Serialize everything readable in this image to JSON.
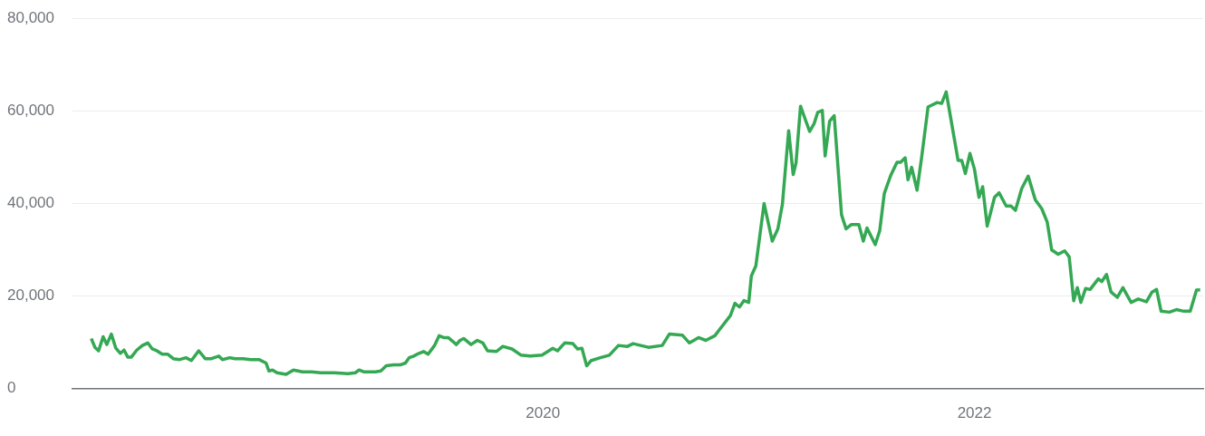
{
  "chart_data": {
    "type": "line",
    "grid": "y",
    "legend": false,
    "xlim": [
      2017.82,
      2023.06
    ],
    "xticks": [
      2020,
      2022
    ],
    "ylim": [
      0,
      80000
    ],
    "yticks": [
      {
        "value": 0,
        "label": "0"
      },
      {
        "value": 20000,
        "label": "20,000"
      },
      {
        "value": 40000,
        "label": "40,000"
      },
      {
        "value": 60000,
        "label": "60,000"
      },
      {
        "value": 80000,
        "label": "80,000"
      }
    ],
    "series": [
      {
        "color": "#34a853",
        "x": [
          2017.907,
          2017.924,
          2017.941,
          2017.962,
          2017.979,
          2018.0,
          2018.021,
          2018.042,
          2018.059,
          2018.076,
          2018.093,
          2018.118,
          2018.144,
          2018.169,
          2018.19,
          2018.211,
          2018.236,
          2018.262,
          2018.287,
          2018.317,
          2018.346,
          2018.371,
          2018.405,
          2018.435,
          2018.464,
          2018.498,
          2018.515,
          2018.549,
          2018.574,
          2018.612,
          2018.646,
          2018.684,
          2018.717,
          2018.73,
          2018.747,
          2018.768,
          2018.81,
          2018.844,
          2018.886,
          2018.928,
          2018.971,
          2019.034,
          2019.097,
          2019.131,
          2019.148,
          2019.169,
          2019.224,
          2019.249,
          2019.274,
          2019.308,
          2019.338,
          2019.363,
          2019.38,
          2019.401,
          2019.426,
          2019.447,
          2019.468,
          2019.498,
          2019.519,
          2019.54,
          2019.561,
          2019.582,
          2019.599,
          2019.616,
          2019.633,
          2019.667,
          2019.696,
          2019.722,
          2019.743,
          2019.785,
          2019.814,
          2019.857,
          2019.899,
          2019.941,
          2019.996,
          2020.046,
          2020.068,
          2020.101,
          2020.139,
          2020.16,
          2020.181,
          2020.203,
          2020.224,
          2020.266,
          2020.308,
          2020.35,
          2020.392,
          2020.418,
          2020.489,
          2020.553,
          2020.586,
          2020.646,
          2020.679,
          2020.721,
          2020.755,
          2020.797,
          2020.818,
          2020.869,
          2020.89,
          2020.911,
          2020.932,
          2020.954,
          2020.966,
          2020.987,
          2021.025,
          2021.063,
          2021.089,
          2021.11,
          2021.139,
          2021.16,
          2021.173,
          2021.194,
          2021.236,
          2021.257,
          2021.274,
          2021.295,
          2021.308,
          2021.329,
          2021.35,
          2021.384,
          2021.405,
          2021.43,
          2021.464,
          2021.485,
          2021.502,
          2021.54,
          2021.561,
          2021.582,
          2021.612,
          2021.641,
          2021.658,
          2021.679,
          2021.692,
          2021.709,
          2021.734,
          2021.755,
          2021.785,
          2021.827,
          2021.848,
          2021.869,
          2021.924,
          2021.941,
          2021.958,
          2021.979,
          2022.0,
          2022.021,
          2022.038,
          2022.059,
          2022.093,
          2022.114,
          2022.147,
          2022.169,
          2022.19,
          2022.219,
          2022.249,
          2022.282,
          2022.312,
          2022.337,
          2022.358,
          2022.388,
          2022.418,
          2022.439,
          2022.46,
          2022.477,
          2022.493,
          2022.515,
          2022.536,
          2022.574,
          2022.59,
          2022.612,
          2022.633,
          2022.662,
          2022.688,
          2022.726,
          2022.759,
          2022.797,
          2022.823,
          2022.844,
          2022.865,
          2022.903,
          2022.936,
          2022.97,
          2023.0,
          2023.029,
          2023.046
        ],
        "values": [
          10800,
          8900,
          8150,
          11200,
          9500,
          11750,
          8700,
          7600,
          8300,
          6800,
          6800,
          8300,
          9300,
          9850,
          8550,
          8150,
          7400,
          7400,
          6450,
          6250,
          6650,
          6050,
          8150,
          6450,
          6450,
          7000,
          6250,
          6650,
          6450,
          6450,
          6250,
          6250,
          5500,
          3800,
          4000,
          3400,
          3050,
          4000,
          3600,
          3600,
          3400,
          3400,
          3200,
          3400,
          4000,
          3600,
          3600,
          3800,
          4900,
          5100,
          5100,
          5500,
          6650,
          7000,
          7600,
          8000,
          7400,
          9300,
          11400,
          11000,
          11000,
          10200,
          9500,
          10400,
          10800,
          9500,
          10400,
          9850,
          8150,
          8000,
          9100,
          8550,
          7200,
          7000,
          7200,
          8700,
          8150,
          9850,
          9700,
          8550,
          8700,
          4900,
          6050,
          6650,
          7200,
          9300,
          9100,
          9700,
          8900,
          9300,
          11750,
          11550,
          9850,
          11000,
          10400,
          11400,
          12700,
          15750,
          18400,
          17600,
          19000,
          18600,
          24300,
          26500,
          40000,
          31850,
          34500,
          39800,
          55700,
          46250,
          48700,
          61000,
          55550,
          57250,
          59700,
          60100,
          50250,
          57800,
          58950,
          37550,
          34500,
          35450,
          35450,
          31850,
          34700,
          31100,
          34100,
          42100,
          46050,
          48900,
          48900,
          49850,
          45100,
          47800,
          42850,
          49850,
          60850,
          61800,
          61600,
          64100,
          49300,
          49300,
          46450,
          50800,
          47400,
          41300,
          43600,
          35100,
          41300,
          42300,
          39450,
          39450,
          38500,
          43200,
          45900,
          40750,
          38850,
          36000,
          29950,
          29000,
          29750,
          28450,
          18950,
          21800,
          18600,
          21600,
          21400,
          23700,
          23100,
          24650,
          20850,
          19700,
          21800,
          18600,
          19350,
          18750,
          20850,
          21400,
          16700,
          16500,
          17050,
          16700,
          16700,
          21250,
          21300
        ]
      }
    ]
  }
}
